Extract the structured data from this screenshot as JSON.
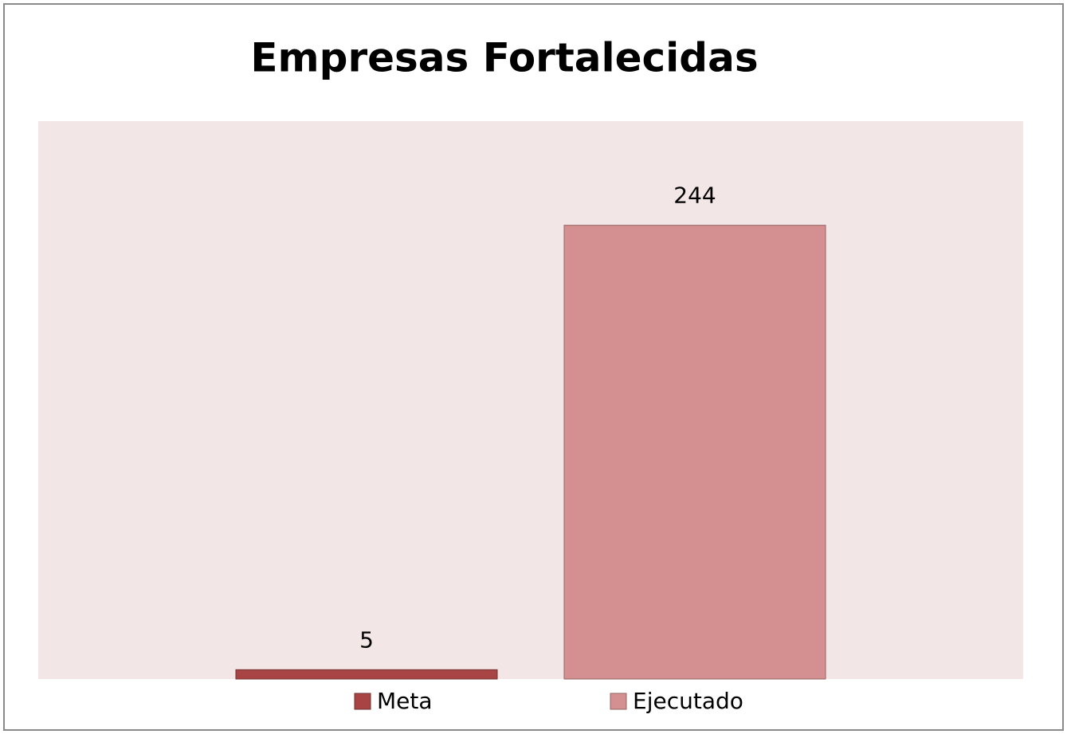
{
  "chart_data": {
    "type": "bar",
    "title": "Empresas Fortalecidas",
    "categories": [
      null
    ],
    "series": [
      {
        "name": "Meta",
        "color": "#a84444",
        "values": [
          5
        ]
      },
      {
        "name": "Ejecutado",
        "color": "#d49090",
        "values": [
          244
        ]
      }
    ],
    "ylim": [
      0,
      300
    ],
    "legend": "bottom",
    "plot_background": "#f3e6e6"
  }
}
